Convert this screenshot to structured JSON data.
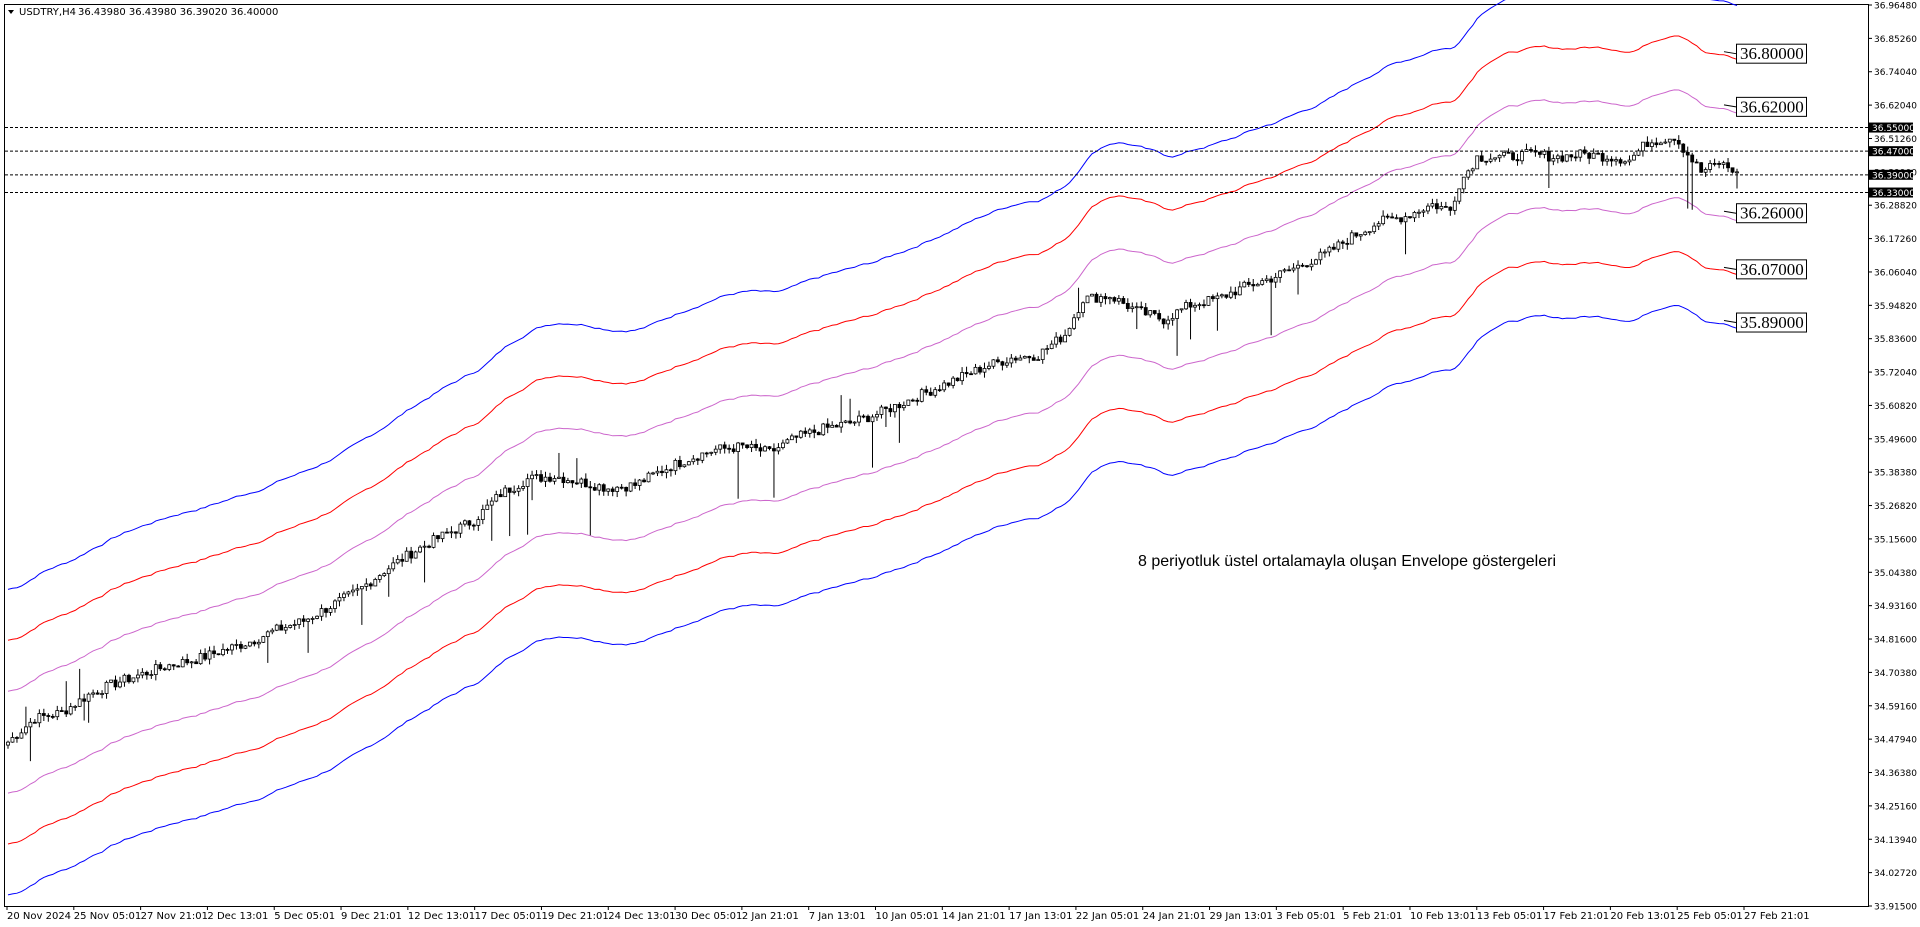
{
  "header": {
    "symbol": "USDTRY,H4",
    "ohlc": "36.43980 36.43980 36.39020 36.40000"
  },
  "chart_data": {
    "type": "candlestick",
    "symbol": "USDTRY",
    "timeframe": "H4",
    "ylim": [
      33.915,
      36.9648
    ],
    "y_ticks": [
      "36.96480",
      "36.85260",
      "36.74040",
      "36.62040",
      "36.51260",
      "36.39900",
      "36.28820",
      "36.17260",
      "36.06040",
      "35.94820",
      "35.83600",
      "35.72040",
      "35.60820",
      "35.49600",
      "35.38380",
      "35.26820",
      "35.15600",
      "35.04380",
      "34.93160",
      "34.81600",
      "34.70380",
      "34.59160",
      "34.47940",
      "34.36380",
      "34.25160",
      "34.13940",
      "34.02720",
      "33.91500"
    ],
    "x_ticks": [
      "20 Nov 2024",
      "25 Nov 05:01",
      "27 Nov 21:01",
      "2 Dec 13:01",
      "5 Dec 05:01",
      "9 Dec 21:01",
      "12 Dec 13:01",
      "17 Dec 05:01",
      "19 Dec 21:01",
      "24 Dec 13:01",
      "30 Dec 05:01",
      "2 Jan 21:01",
      "7 Jan 13:01",
      "10 Jan 05:01",
      "14 Jan 21:01",
      "17 Jan 13:01",
      "22 Jan 05:01",
      "24 Jan 21:01",
      "29 Jan 13:01",
      "3 Feb 05:01",
      "5 Feb 21:01",
      "10 Feb 13:01",
      "13 Feb 05:01",
      "17 Feb 21:01",
      "20 Feb 13:01",
      "25 Feb 05:01",
      "27 Feb 21:01"
    ],
    "x_range": [
      "20 Nov 2024",
      "3 Mar 2025"
    ],
    "trend_points": [
      [
        0,
        34.47
      ],
      [
        6,
        34.55
      ],
      [
        12,
        34.57
      ],
      [
        18,
        34.63
      ],
      [
        24,
        34.67
      ],
      [
        30,
        34.7
      ],
      [
        36,
        34.73
      ],
      [
        42,
        34.75
      ],
      [
        48,
        34.78
      ],
      [
        54,
        34.81
      ],
      [
        60,
        34.85
      ],
      [
        66,
        34.88
      ],
      [
        72,
        34.93
      ],
      [
        78,
        34.98
      ],
      [
        84,
        35.05
      ],
      [
        90,
        35.11
      ],
      [
        96,
        35.16
      ],
      [
        104,
        35.22
      ],
      [
        110,
        35.31
      ],
      [
        116,
        35.36
      ],
      [
        122,
        35.37
      ],
      [
        128,
        35.35
      ],
      [
        134,
        35.33
      ],
      [
        140,
        35.34
      ],
      [
        146,
        35.39
      ],
      [
        152,
        35.43
      ],
      [
        158,
        35.46
      ],
      [
        164,
        35.47
      ],
      [
        170,
        35.45
      ],
      [
        176,
        35.5
      ],
      [
        182,
        35.53
      ],
      [
        188,
        35.55
      ],
      [
        194,
        35.58
      ],
      [
        200,
        35.62
      ],
      [
        206,
        35.66
      ],
      [
        212,
        35.7
      ],
      [
        218,
        35.74
      ],
      [
        224,
        35.77
      ],
      [
        230,
        35.78
      ],
      [
        236,
        35.85
      ],
      [
        240,
        35.97
      ],
      [
        246,
        35.98
      ],
      [
        252,
        35.93
      ],
      [
        258,
        35.9
      ],
      [
        264,
        35.95
      ],
      [
        270,
        35.97
      ],
      [
        276,
        36.01
      ],
      [
        282,
        36.04
      ],
      [
        288,
        36.08
      ],
      [
        294,
        36.12
      ],
      [
        300,
        36.18
      ],
      [
        306,
        36.23
      ],
      [
        312,
        36.25
      ],
      [
        318,
        36.29
      ],
      [
        322,
        36.27
      ],
      [
        324,
        36.36
      ],
      [
        328,
        36.45
      ],
      [
        334,
        36.45
      ],
      [
        340,
        36.46
      ],
      [
        346,
        36.45
      ],
      [
        352,
        36.46
      ],
      [
        358,
        36.45
      ],
      [
        362,
        36.44
      ],
      [
        366,
        36.5
      ],
      [
        372,
        36.52
      ],
      [
        378,
        36.4
      ],
      [
        382,
        36.43
      ],
      [
        386,
        36.4
      ]
    ],
    "candle_count": 387,
    "last_close": 36.4,
    "envelopes": {
      "ma": "EMA 8",
      "lines": [
        {
          "color": "#0000ff",
          "offset_pct": 1.5
        },
        {
          "color": "#ff0000",
          "offset_pct": 1.0
        },
        {
          "color": "#cc66cc",
          "offset_pct": 0.5
        },
        {
          "color": "#cc66cc",
          "offset_pct": -0.5
        },
        {
          "color": "#ff0000",
          "offset_pct": -1.0
        },
        {
          "color": "#0000ff",
          "offset_pct": -1.5
        }
      ]
    },
    "hlines": [
      {
        "label": "36.55000",
        "value": 36.55
      },
      {
        "label": "36.47000",
        "value": 36.47
      },
      {
        "label": "36.39000",
        "value": 36.39
      },
      {
        "label": "36.33000",
        "value": 36.33
      }
    ],
    "level_labels": [
      {
        "label": "36.80000",
        "value": 36.8
      },
      {
        "label": "36.62000",
        "value": 36.62
      },
      {
        "label": "36.26000",
        "value": 36.26
      },
      {
        "label": "36.07000",
        "value": 36.07
      },
      {
        "label": "35.89000",
        "value": 35.89
      }
    ],
    "annotation": "8 periyotluk üstel ortalamayla oluşan Envelope göstergeleri"
  }
}
